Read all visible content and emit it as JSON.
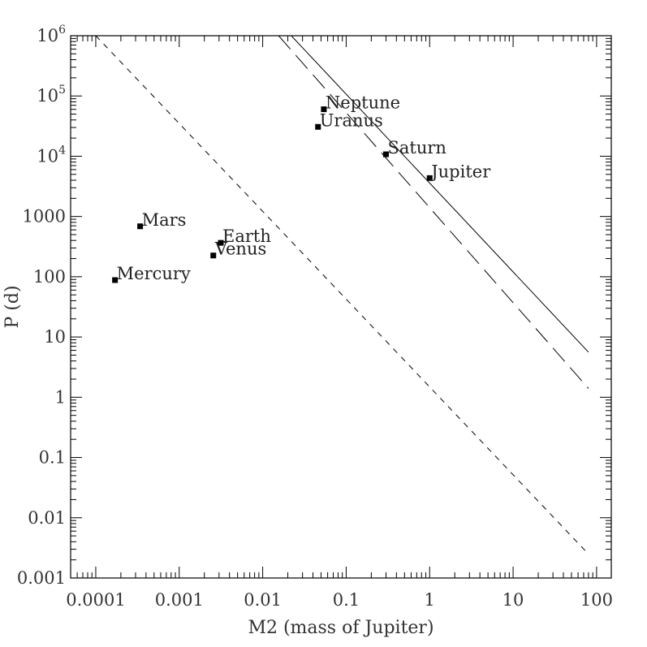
{
  "chart_data": {
    "type": "scatter",
    "xlabel": "M2 (mass of Jupiter)",
    "ylabel": "P (d)",
    "x_scale": "log",
    "y_scale": "log",
    "xlim": [
      5e-05,
      150
    ],
    "ylim": [
      0.001,
      1000000
    ],
    "x_ticks": [
      {
        "value": 0.0001,
        "label": "0.0001"
      },
      {
        "value": 0.001,
        "label": "0.001"
      },
      {
        "value": 0.01,
        "label": "0.01"
      },
      {
        "value": 0.1,
        "label": "0.1"
      },
      {
        "value": 1,
        "label": "1"
      },
      {
        "value": 10,
        "label": "10"
      },
      {
        "value": 100,
        "label": "100"
      }
    ],
    "y_ticks": [
      {
        "value": 0.001,
        "label": "0.001",
        "exp": ""
      },
      {
        "value": 0.01,
        "label": "0.01",
        "exp": ""
      },
      {
        "value": 0.1,
        "label": "0.1",
        "exp": ""
      },
      {
        "value": 1,
        "label": "1",
        "exp": ""
      },
      {
        "value": 10,
        "label": "10",
        "exp": ""
      },
      {
        "value": 100,
        "label": "100",
        "exp": ""
      },
      {
        "value": 1000,
        "label": "1000",
        "exp": ""
      },
      {
        "value": 10000,
        "label": "10",
        "exp": "4"
      },
      {
        "value": 100000,
        "label": "10",
        "exp": "5"
      },
      {
        "value": 1000000,
        "label": "10",
        "exp": "6"
      }
    ],
    "points": [
      {
        "name": "Mercury",
        "x": 0.00017,
        "y": 88
      },
      {
        "name": "Venus",
        "x": 0.00256,
        "y": 225
      },
      {
        "name": "Earth",
        "x": 0.00315,
        "y": 365
      },
      {
        "name": "Mars",
        "x": 0.00034,
        "y": 687
      },
      {
        "name": "Jupiter",
        "x": 1.0,
        "y": 4333
      },
      {
        "name": "Saturn",
        "x": 0.3,
        "y": 10759
      },
      {
        "name": "Uranus",
        "x": 0.046,
        "y": 30687
      },
      {
        "name": "Neptune",
        "x": 0.054,
        "y": 60190
      }
    ],
    "lines": [
      {
        "style": "solid",
        "points": [
          [
            0.022,
            1000000
          ],
          [
            80,
            5.6
          ]
        ]
      },
      {
        "style": "long-dash",
        "points": [
          [
            0.0155,
            1000000
          ],
          [
            80,
            1.4
          ]
        ]
      },
      {
        "style": "short-dash",
        "points": [
          [
            0.0001,
            1000000
          ],
          [
            80,
            0.0025
          ]
        ]
      }
    ],
    "grid": false
  }
}
